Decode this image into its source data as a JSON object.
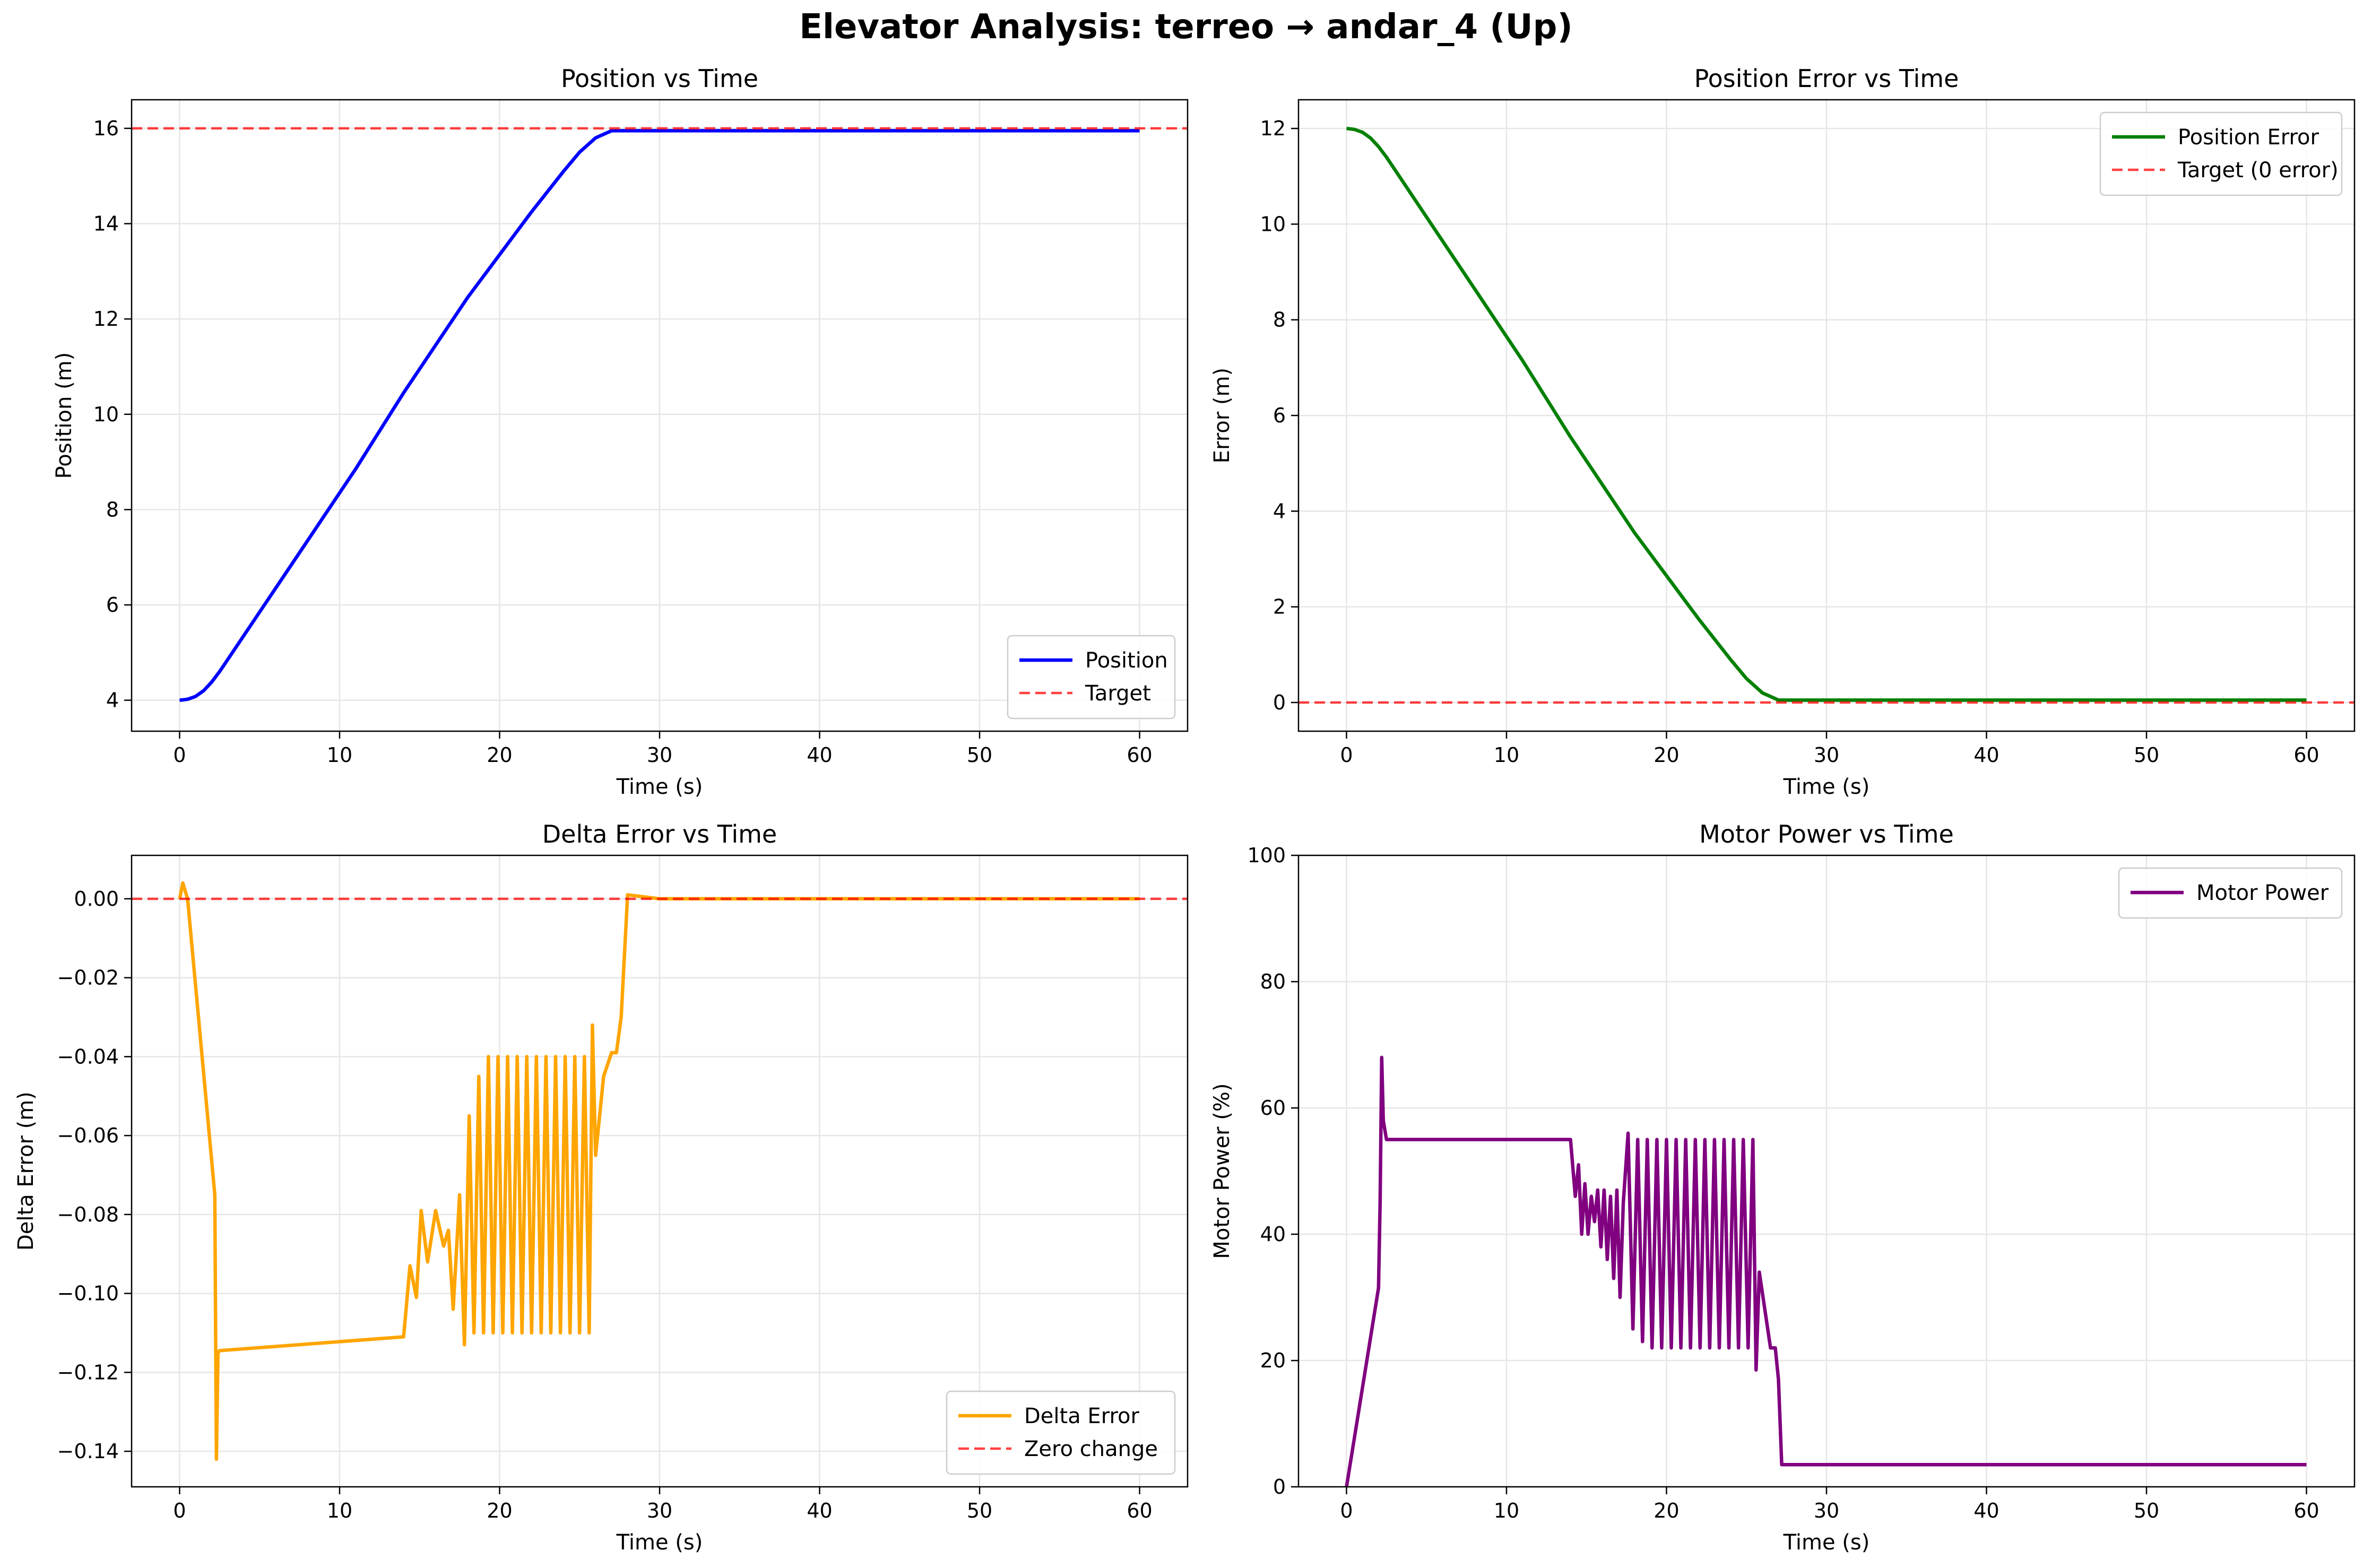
{
  "figure": {
    "title": "Elevator Analysis: terreo → andar_4 (Up)"
  },
  "chart_data": [
    {
      "type": "line",
      "title": "Position vs Time",
      "xlabel": "Time (s)",
      "ylabel": "Position (m)",
      "xlim": [
        -3,
        63
      ],
      "ylim": [
        3.35,
        16.6
      ],
      "xticks": [
        0,
        10,
        20,
        30,
        40,
        50,
        60
      ],
      "yticks": [
        4,
        6,
        8,
        10,
        12,
        14,
        16
      ],
      "grid": true,
      "legend_position": "lower-right",
      "series": [
        {
          "name": "Position",
          "color": "#0000ff",
          "style": "solid",
          "x": [
            0,
            0.5,
            1,
            1.5,
            2,
            2.5,
            3,
            5,
            8,
            11,
            14,
            16,
            18,
            20,
            22,
            24,
            25,
            26,
            27,
            28,
            30,
            40,
            50,
            60
          ],
          "y": [
            4.0,
            4.02,
            4.08,
            4.2,
            4.38,
            4.6,
            4.85,
            5.85,
            7.35,
            8.85,
            10.45,
            11.45,
            12.45,
            13.35,
            14.25,
            15.1,
            15.5,
            15.8,
            15.95,
            15.95,
            15.95,
            15.95,
            15.95,
            15.95
          ]
        },
        {
          "name": "Target",
          "color": "#ff0000",
          "style": "dashed",
          "hline": 16
        }
      ]
    },
    {
      "type": "line",
      "title": "Position Error vs Time",
      "xlabel": "Time (s)",
      "ylabel": "Error (m)",
      "xlim": [
        -3,
        63
      ],
      "ylim": [
        -0.6,
        12.6
      ],
      "xticks": [
        0,
        10,
        20,
        30,
        40,
        50,
        60
      ],
      "yticks": [
        0,
        2,
        4,
        6,
        8,
        10,
        12
      ],
      "grid": true,
      "legend_position": "top-right",
      "series": [
        {
          "name": "Position Error",
          "color": "#008000",
          "style": "solid",
          "x": [
            0,
            0.5,
            1,
            1.5,
            2,
            2.5,
            3,
            5,
            8,
            11,
            14,
            16,
            18,
            20,
            22,
            24,
            25,
            26,
            27,
            28,
            30,
            40,
            50,
            60
          ],
          "y": [
            12.0,
            11.98,
            11.92,
            11.8,
            11.62,
            11.4,
            11.15,
            10.15,
            8.65,
            7.15,
            5.55,
            4.55,
            3.55,
            2.65,
            1.75,
            0.9,
            0.5,
            0.2,
            0.05,
            0.05,
            0.05,
            0.05,
            0.05,
            0.05
          ]
        },
        {
          "name": "Target (0 error)",
          "color": "#ff0000",
          "style": "dashed",
          "hline": 0
        }
      ]
    },
    {
      "type": "line",
      "title": "Delta Error vs Time",
      "xlabel": "Time (s)",
      "ylabel": "Delta Error (m)",
      "xlim": [
        -3,
        63
      ],
      "ylim": [
        -0.149,
        0.011
      ],
      "xticks": [
        0,
        10,
        20,
        30,
        40,
        50,
        60
      ],
      "yticks": [
        0.0,
        -0.02,
        -0.04,
        -0.06,
        -0.08,
        -0.1,
        -0.12,
        -0.14
      ],
      "ytick_labels": [
        "0.00",
        "−0.02",
        "−0.04",
        "−0.06",
        "−0.08",
        "−0.10",
        "−0.12",
        "−0.14"
      ],
      "grid": true,
      "legend_position": "lower-right",
      "series": [
        {
          "name": "Delta Error",
          "color": "#ffa500",
          "style": "solid",
          "x": [
            0,
            0.2,
            0.5,
            2.2,
            2.3,
            2.4,
            2.5,
            14.0,
            14.4,
            14.8,
            15.1,
            15.5,
            16.0,
            16.5,
            16.8,
            17.1,
            17.5,
            17.8,
            18.1,
            18.4,
            18.7,
            19.0,
            19.3,
            19.6,
            19.9,
            20.2,
            20.5,
            20.8,
            21.1,
            21.4,
            21.7,
            22.0,
            22.3,
            22.6,
            22.9,
            23.2,
            23.5,
            23.8,
            24.1,
            24.4,
            24.7,
            25.0,
            25.3,
            25.6,
            25.8,
            26.0,
            26.5,
            27.0,
            27.3,
            27.6,
            28.0,
            30.0,
            35.0,
            40.0,
            45.0,
            50.0,
            55.0,
            60.0
          ],
          "y": [
            0.0,
            0.004,
            0.0,
            -0.075,
            -0.142,
            -0.115,
            -0.1145,
            -0.111,
            -0.093,
            -0.101,
            -0.079,
            -0.092,
            -0.079,
            -0.088,
            -0.084,
            -0.104,
            -0.075,
            -0.113,
            -0.055,
            -0.11,
            -0.045,
            -0.11,
            -0.04,
            -0.11,
            -0.04,
            -0.11,
            -0.04,
            -0.11,
            -0.04,
            -0.11,
            -0.04,
            -0.11,
            -0.04,
            -0.11,
            -0.04,
            -0.11,
            -0.04,
            -0.11,
            -0.04,
            -0.11,
            -0.04,
            -0.11,
            -0.04,
            -0.11,
            -0.032,
            -0.065,
            -0.045,
            -0.039,
            -0.039,
            -0.03,
            0.001,
            0.0,
            0.0,
            0.0,
            0.0,
            0.0,
            0.0,
            0.0
          ]
        },
        {
          "name": "Zero change",
          "color": "#ff0000",
          "style": "dashed",
          "hline": 0
        }
      ]
    },
    {
      "type": "line",
      "title": "Motor Power vs Time",
      "xlabel": "Time (s)",
      "ylabel": "Motor Power (%)",
      "xlim": [
        -3,
        63
      ],
      "ylim": [
        0,
        100
      ],
      "xticks": [
        0,
        10,
        20,
        30,
        40,
        50,
        60
      ],
      "yticks": [
        0,
        20,
        40,
        60,
        80,
        100
      ],
      "grid": true,
      "legend_position": "top-right",
      "series": [
        {
          "name": "Motor Power",
          "color": "#800080",
          "style": "solid",
          "x": [
            0,
            2.0,
            2.1,
            2.2,
            2.3,
            2.5,
            14.0,
            14.3,
            14.5,
            14.7,
            14.9,
            15.1,
            15.3,
            15.5,
            15.7,
            15.9,
            16.1,
            16.3,
            16.5,
            16.7,
            16.9,
            17.1,
            17.3,
            17.6,
            17.9,
            18.2,
            18.5,
            18.8,
            19.1,
            19.4,
            19.7,
            20.0,
            20.3,
            20.6,
            20.9,
            21.2,
            21.5,
            21.8,
            22.1,
            22.4,
            22.7,
            23.0,
            23.3,
            23.6,
            23.9,
            24.2,
            24.5,
            24.8,
            25.1,
            25.4,
            25.6,
            25.8,
            26.5,
            26.8,
            27.0,
            27.2,
            30,
            35,
            40,
            45,
            50,
            55,
            60
          ],
          "y": [
            0,
            31.5,
            45,
            68,
            58,
            55,
            55,
            46,
            51,
            40,
            48,
            40,
            46,
            42,
            47,
            38,
            47,
            36,
            46,
            33,
            47,
            30,
            45,
            56,
            25,
            55,
            23,
            55,
            22,
            55,
            22,
            55,
            22,
            55,
            22,
            55,
            22,
            55,
            22,
            55,
            22,
            55,
            22,
            55,
            22,
            55,
            22,
            55,
            22,
            55,
            18.5,
            34,
            22,
            22,
            17,
            3.5,
            3.5,
            3.5,
            3.5,
            3.5,
            3.5,
            3.5,
            3.5
          ]
        }
      ]
    }
  ]
}
